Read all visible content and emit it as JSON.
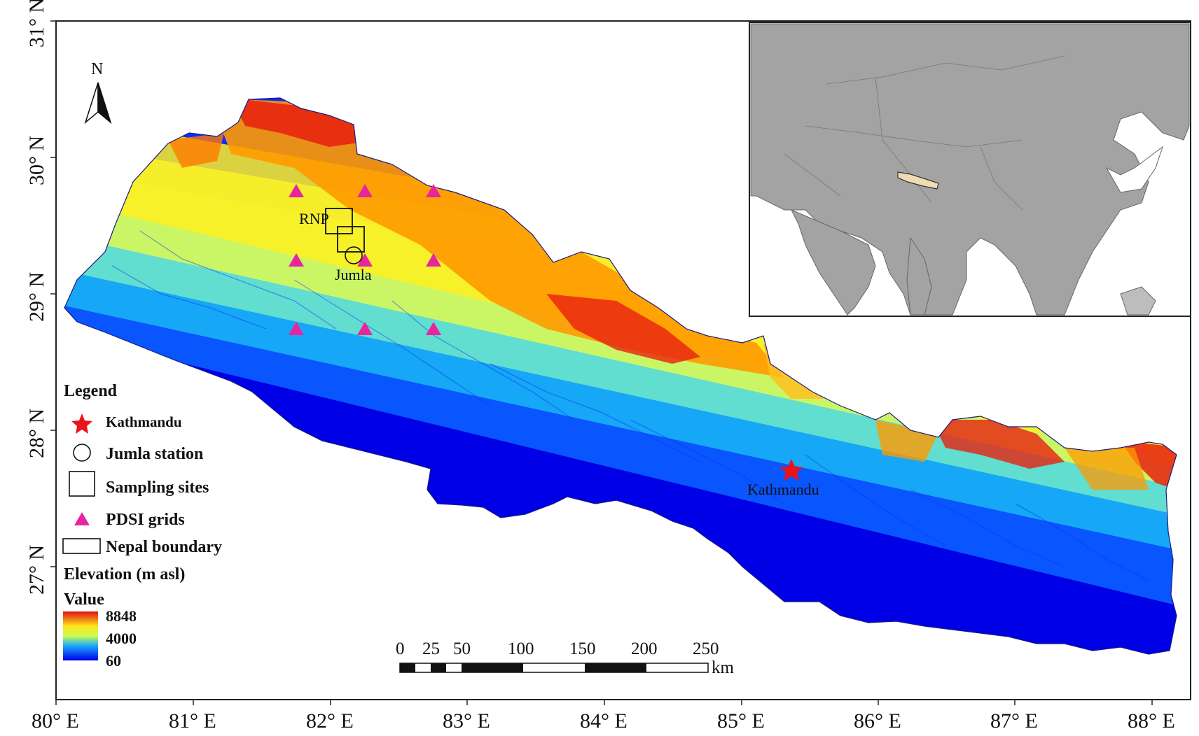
{
  "axes": {
    "x_ticks": [
      "80° E",
      "81° E",
      "82° E",
      "83° E",
      "84° E",
      "85° E",
      "86° E",
      "87° E",
      "88° E"
    ],
    "y_ticks": [
      "31° N",
      "30° N",
      "29° N",
      "28° N",
      "27° N"
    ]
  },
  "north_arrow": {
    "label": "N"
  },
  "places": {
    "rnp": "RNP",
    "jumla": "Jumla",
    "kathmandu": "Kathmandu"
  },
  "legend": {
    "title": "Legend",
    "items": {
      "kathmandu": "Kathmandu",
      "jumla_station": "Jumla station",
      "sampling_sites": "Sampling sites",
      "pdsi_grids": "PDSI grids",
      "nepal_boundary": "Nepal boundary"
    },
    "elevation_title": "Elevation (m asl)",
    "value_label": "Value",
    "ramp_values": {
      "high": "8848",
      "mid": "4000",
      "low": "60"
    }
  },
  "scale_bar": {
    "labels": [
      "0",
      "25",
      "50",
      "100",
      "150",
      "200",
      "250"
    ],
    "unit": "km"
  },
  "colors": {
    "pdsi": "#e8259e",
    "star": "#e8141b",
    "nepal_inset": "#f0dcb4",
    "inset_land": "#a3a3a3",
    "ramp_high": "#e01010",
    "ramp_mid": "#f5f520",
    "ramp_low": "#0000e6"
  }
}
